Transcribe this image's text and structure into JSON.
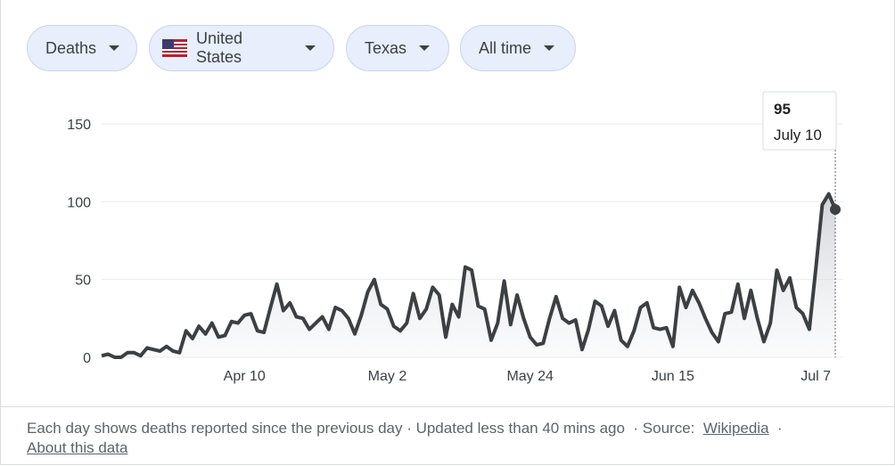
{
  "filters": [
    "Deaths",
    "United States",
    "Texas",
    "All time"
  ],
  "chart_data": {
    "type": "line",
    "categories": [
      null,
      null,
      null,
      null,
      null,
      null,
      null,
      null,
      null,
      null,
      null,
      null,
      null,
      null,
      null,
      null,
      null,
      null,
      null,
      null,
      null,
      null,
      "Apr 10",
      null,
      null,
      null,
      null,
      null,
      null,
      null,
      null,
      null,
      null,
      null,
      null,
      null,
      null,
      null,
      null,
      null,
      null,
      null,
      null,
      null,
      "May 2",
      null,
      null,
      null,
      null,
      null,
      null,
      null,
      null,
      null,
      null,
      null,
      null,
      null,
      null,
      null,
      null,
      null,
      null,
      null,
      null,
      null,
      "May 24",
      null,
      null,
      null,
      null,
      null,
      null,
      null,
      null,
      null,
      null,
      null,
      null,
      null,
      null,
      null,
      null,
      null,
      null,
      null,
      null,
      null,
      "Jun 15",
      null,
      null,
      null,
      null,
      null,
      null,
      null,
      null,
      null,
      null,
      null,
      null,
      null,
      null,
      null,
      null,
      null,
      null,
      null,
      null,
      null,
      "Jul 7",
      null,
      null,
      null
    ],
    "series": [
      {
        "name": "Deaths",
        "color": "#3c4043",
        "values": [
          1,
          2,
          0,
          0,
          3,
          3,
          1,
          6,
          5,
          4,
          7,
          4,
          3,
          17,
          12,
          20,
          15,
          22,
          13,
          14,
          23,
          22,
          27,
          28,
          17,
          16,
          32,
          47,
          30,
          35,
          26,
          25,
          18,
          22,
          26,
          18,
          32,
          30,
          25,
          15,
          27,
          42,
          50,
          34,
          31,
          20,
          17,
          22,
          41,
          25,
          31,
          45,
          40,
          13,
          34,
          26,
          58,
          56,
          33,
          31,
          11,
          22,
          49,
          21,
          40,
          25,
          13,
          8,
          9,
          25,
          39,
          25,
          22,
          24,
          5,
          18,
          36,
          33,
          20,
          30,
          11,
          7,
          17,
          32,
          35,
          19,
          18,
          19,
          7,
          45,
          32,
          43,
          35,
          25,
          16,
          10,
          28,
          29,
          47,
          25,
          43,
          25,
          10,
          22,
          56,
          43,
          51,
          32,
          28,
          18,
          57,
          98,
          105,
          95
        ]
      }
    ],
    "ylim": [
      0,
      150
    ],
    "yticks": [
      0,
      50,
      100,
      150
    ],
    "grid": true,
    "tooltip_date": "July 10"
  },
  "footer": {
    "note": "Each day shows deaths reported since the previous day · Updated less than 40 mins ago",
    "source_label": "· Source:",
    "source_link": "Wikipedia",
    "about": "About this data"
  }
}
